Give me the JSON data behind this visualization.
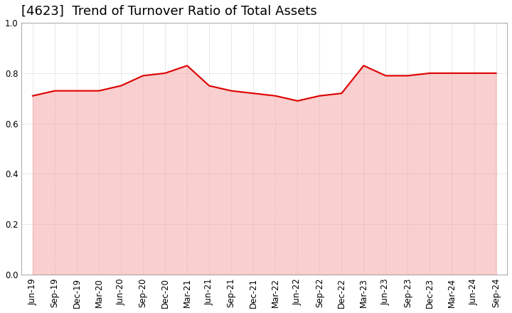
{
  "title": "[4623]  Trend of Turnover Ratio of Total Assets",
  "x_labels": [
    "Jun-19",
    "Sep-19",
    "Dec-19",
    "Mar-20",
    "Jun-20",
    "Sep-20",
    "Dec-20",
    "Mar-21",
    "Jun-21",
    "Sep-21",
    "Dec-21",
    "Mar-22",
    "Jun-22",
    "Sep-22",
    "Dec-22",
    "Mar-23",
    "Jun-23",
    "Sep-23",
    "Dec-23",
    "Mar-24",
    "Jun-24",
    "Sep-24"
  ],
  "values": [
    0.71,
    0.73,
    0.73,
    0.73,
    0.75,
    0.79,
    0.8,
    0.83,
    0.75,
    0.73,
    0.72,
    0.71,
    0.69,
    0.71,
    0.72,
    0.83,
    0.79,
    0.79,
    0.8,
    0.8,
    0.8,
    0.8
  ],
  "line_color": "#dd0000",
  "fill_color": "#f5a0a0",
  "background_color": "#ffffff",
  "plot_bg_color": "#ffffff",
  "grid_color": "#bbbbbb",
  "ylim": [
    0.0,
    1.0
  ],
  "yticks": [
    0.0,
    0.2,
    0.4,
    0.6,
    0.8,
    1.0
  ],
  "title_fontsize": 13,
  "tick_fontsize": 8.5,
  "line_width": 1.5
}
